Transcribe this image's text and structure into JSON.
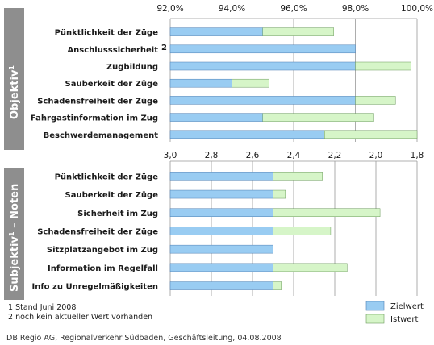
{
  "colors": {
    "zielwert": "#99CCF2",
    "istwert": "#D6F5C8",
    "grid": "#999999",
    "sidebar": "#8E8E8E",
    "stroke_ziel": "#4D7FB3",
    "stroke_ist": "#6A9A5A"
  },
  "panels": {
    "objektiv": {
      "side_label": "Objektiv",
      "side_sup": "1"
    },
    "subjektiv": {
      "side_label": "Subjektiv",
      "side_sup": "1",
      "side_suffix": " – Noten"
    }
  },
  "chart_data": [
    {
      "type": "bar",
      "orientation": "horizontal",
      "categories": [
        "Pünktlichkeit der Züge",
        "Anschlusssicherheit",
        "Zugbildung",
        "Sauberkeit der Züge",
        "Schadensfreiheit der Züge",
        "Fahrgastinformation im Zug",
        "Beschwerdemanagement"
      ],
      "category_notes": [
        "",
        "2",
        "",
        "",
        "",
        "",
        ""
      ],
      "xlim": [
        92.0,
        100.0
      ],
      "xticks": [
        "92,0%",
        "94,0%",
        "96,0%",
        "98,0%",
        "100,0%"
      ],
      "series": [
        {
          "name": "Zielwert",
          "values": [
            95.0,
            98.0,
            98.0,
            94.0,
            98.0,
            95.0,
            97.0
          ]
        },
        {
          "name": "Istwert",
          "values": [
            97.3,
            null,
            99.8,
            95.2,
            99.3,
            98.6,
            100.0
          ]
        }
      ]
    },
    {
      "type": "bar",
      "orientation": "horizontal",
      "categories": [
        "Pünktlichkeit der Züge",
        "Sauberkeit der Züge",
        "Sicherheit im Zug",
        "Schadensfreiheit der Züge",
        "Sitzplatzangebot im Zug",
        "Information im Regelfall",
        "Info zu Unregelmäßigkeiten"
      ],
      "xlim": [
        3.0,
        1.8
      ],
      "xticks": [
        "3,0",
        "2,8",
        "2,6",
        "2,4",
        "2,2",
        "2,0",
        "1,8"
      ],
      "series": [
        {
          "name": "Zielwert",
          "values": [
            2.5,
            2.5,
            2.5,
            2.5,
            2.5,
            2.5,
            2.5
          ]
        },
        {
          "name": "Istwert",
          "values": [
            2.26,
            2.44,
            1.98,
            2.22,
            null,
            2.14,
            2.46
          ]
        }
      ]
    }
  ],
  "footnotes": [
    "1 Stand Juni 2008",
    "2 noch kein aktueller Wert vorhanden"
  ],
  "legend": [
    {
      "label": "Zielwert",
      "color": "#99CCF2"
    },
    {
      "label": "Istwert",
      "color": "#D6F5C8"
    }
  ],
  "source": "DB Regio AG, Regionalverkehr Südbaden, Geschäftsleitung, 04.08.2008"
}
